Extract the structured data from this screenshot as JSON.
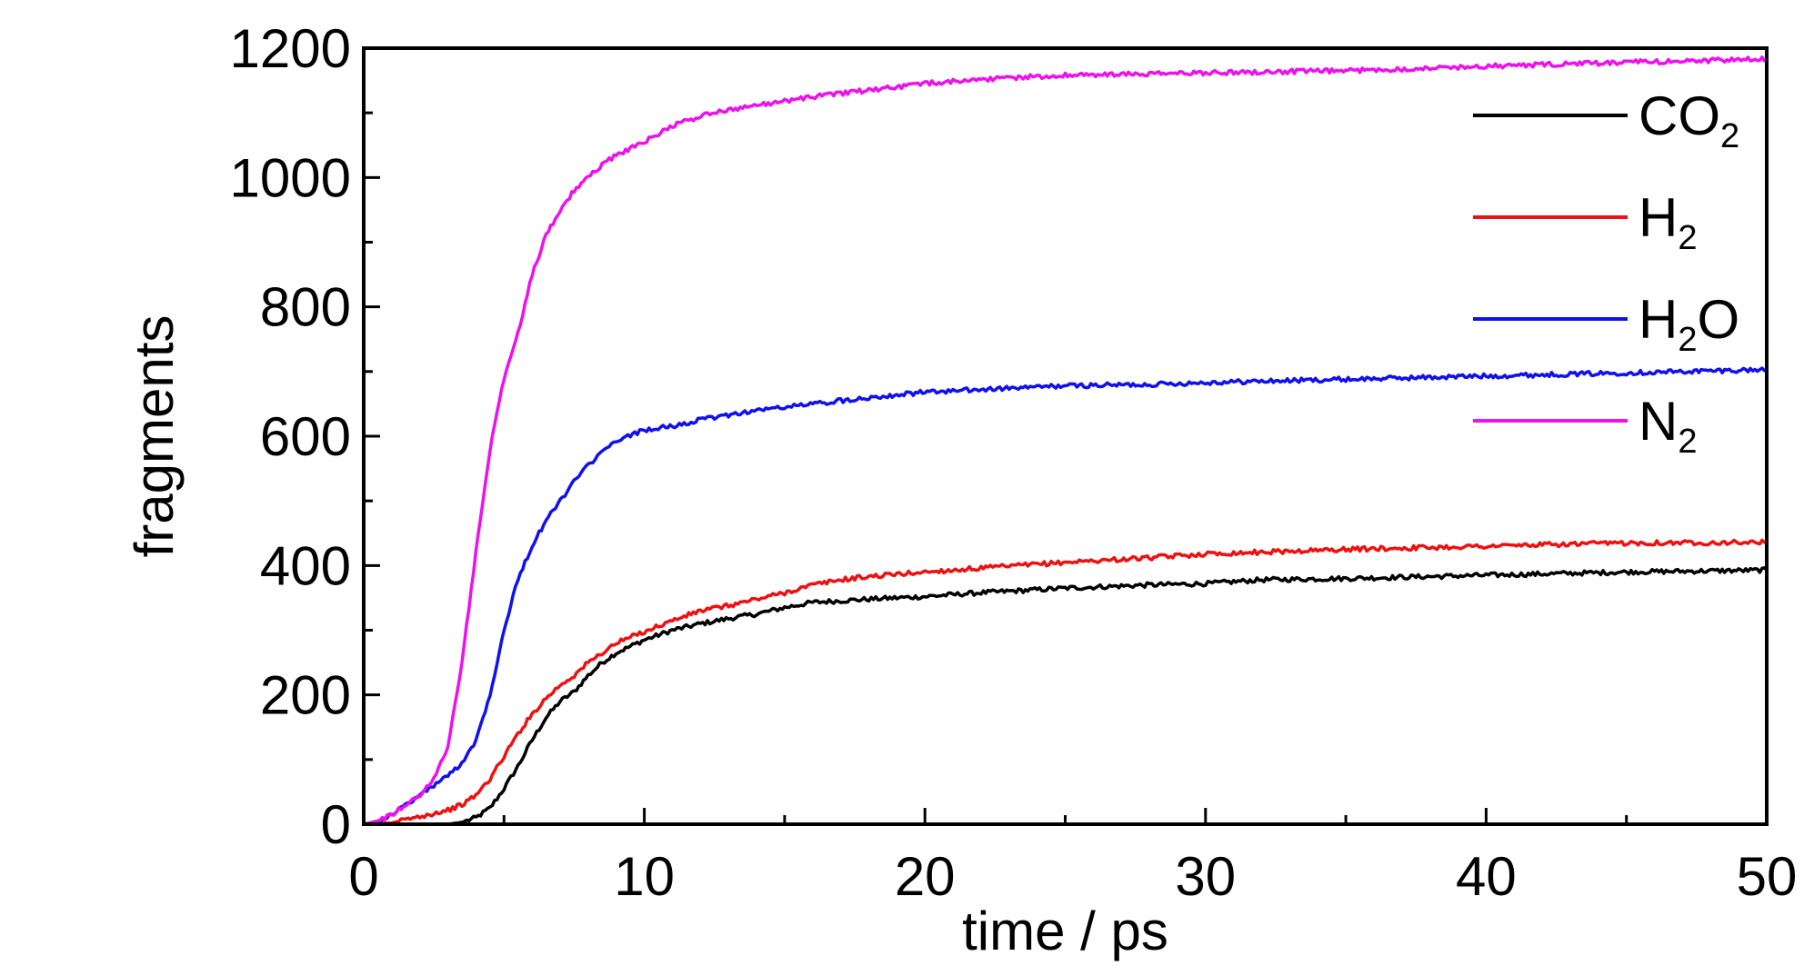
{
  "chart_data": {
    "type": "line",
    "xlabel": "time / ps",
    "ylabel": "fragments",
    "xlim": [
      0,
      50
    ],
    "ylim": [
      0,
      1200
    ],
    "x_ticks": [
      0,
      10,
      20,
      30,
      40,
      50
    ],
    "y_ticks": [
      0,
      200,
      400,
      600,
      800,
      1000,
      1200
    ],
    "x_ticks_labels": [
      "0",
      "10",
      "20",
      "30",
      "40",
      "50"
    ],
    "y_ticks_labels": [
      "0",
      "200",
      "400",
      "600",
      "800",
      "1000",
      "1200"
    ],
    "grid": false,
    "legend_position": "top-right",
    "series": [
      {
        "name": "CO2",
        "name_base": "CO",
        "name_sub": "2",
        "name_tail": "",
        "color": "#000000",
        "points": [
          [
            0,
            0
          ],
          [
            3,
            0
          ],
          [
            3.5,
            3
          ],
          [
            4,
            10
          ],
          [
            4.5,
            25
          ],
          [
            5,
            55
          ],
          [
            5.5,
            90
          ],
          [
            6,
            130
          ],
          [
            6.5,
            165
          ],
          [
            7,
            190
          ],
          [
            7.5,
            205
          ],
          [
            8,
            230
          ],
          [
            8.5,
            250
          ],
          [
            9,
            265
          ],
          [
            10,
            285
          ],
          [
            11,
            300
          ],
          [
            12,
            310
          ],
          [
            13,
            318
          ],
          [
            14,
            325
          ],
          [
            15,
            335
          ],
          [
            16,
            343
          ],
          [
            18,
            348
          ],
          [
            20,
            352
          ],
          [
            22,
            358
          ],
          [
            25,
            365
          ],
          [
            28,
            370
          ],
          [
            30,
            372
          ],
          [
            32,
            378
          ],
          [
            35,
            380
          ],
          [
            40,
            385
          ],
          [
            45,
            390
          ],
          [
            50,
            393
          ]
        ]
      },
      {
        "name": "H2",
        "name_base": "H",
        "name_sub": "2",
        "name_tail": "",
        "color": "#ee1111",
        "points": [
          [
            0,
            0
          ],
          [
            1,
            2
          ],
          [
            2,
            12
          ],
          [
            3,
            22
          ],
          [
            3.5,
            30
          ],
          [
            4,
            45
          ],
          [
            4.5,
            70
          ],
          [
            5,
            105
          ],
          [
            5.5,
            140
          ],
          [
            6,
            170
          ],
          [
            6.5,
            195
          ],
          [
            7,
            215
          ],
          [
            7.5,
            230
          ],
          [
            8,
            250
          ],
          [
            8.5,
            265
          ],
          [
            9,
            280
          ],
          [
            10,
            298
          ],
          [
            11,
            315
          ],
          [
            12,
            330
          ],
          [
            13,
            338
          ],
          [
            14,
            348
          ],
          [
            15,
            358
          ],
          [
            16,
            370
          ],
          [
            17,
            378
          ],
          [
            18,
            383
          ],
          [
            20,
            390
          ],
          [
            22,
            396
          ],
          [
            25,
            405
          ],
          [
            28,
            412
          ],
          [
            30,
            418
          ],
          [
            35,
            425
          ],
          [
            40,
            430
          ],
          [
            45,
            435
          ],
          [
            50,
            436
          ]
        ]
      },
      {
        "name": "H2O",
        "name_base": "H",
        "name_sub": "2",
        "name_tail": "O",
        "color": "#1111ee",
        "points": [
          [
            0,
            0
          ],
          [
            0.5,
            5
          ],
          [
            1,
            15
          ],
          [
            1.5,
            30
          ],
          [
            2,
            45
          ],
          [
            2.5,
            60
          ],
          [
            3,
            75
          ],
          [
            3.5,
            95
          ],
          [
            4,
            130
          ],
          [
            4.5,
            200
          ],
          [
            5,
            300
          ],
          [
            5.5,
            380
          ],
          [
            6,
            430
          ],
          [
            6.5,
            470
          ],
          [
            7,
            500
          ],
          [
            7.5,
            530
          ],
          [
            8,
            555
          ],
          [
            8.5,
            575
          ],
          [
            9,
            592
          ],
          [
            10,
            610
          ],
          [
            11,
            615
          ],
          [
            12,
            625
          ],
          [
            13,
            633
          ],
          [
            14,
            640
          ],
          [
            15,
            645
          ],
          [
            16,
            650
          ],
          [
            18,
            660
          ],
          [
            20,
            668
          ],
          [
            22,
            672
          ],
          [
            25,
            678
          ],
          [
            28,
            680
          ],
          [
            30,
            683
          ],
          [
            35,
            688
          ],
          [
            40,
            693
          ],
          [
            45,
            698
          ],
          [
            50,
            703
          ]
        ]
      },
      {
        "name": "N2",
        "name_base": "N",
        "name_sub": "2",
        "name_tail": "",
        "color": "#ee11ee",
        "points": [
          [
            0,
            0
          ],
          [
            0.5,
            5
          ],
          [
            1,
            15
          ],
          [
            1.5,
            30
          ],
          [
            2,
            45
          ],
          [
            2.5,
            70
          ],
          [
            3,
            120
          ],
          [
            3.5,
            250
          ],
          [
            4,
            420
          ],
          [
            4.5,
            580
          ],
          [
            5,
            690
          ],
          [
            5.5,
            760
          ],
          [
            6,
            850
          ],
          [
            6.5,
            910
          ],
          [
            7,
            950
          ],
          [
            7.5,
            980
          ],
          [
            8,
            1000
          ],
          [
            8.5,
            1020
          ],
          [
            9,
            1035
          ],
          [
            10,
            1055
          ],
          [
            11,
            1080
          ],
          [
            12,
            1095
          ],
          [
            13,
            1105
          ],
          [
            14,
            1112
          ],
          [
            15,
            1118
          ],
          [
            16,
            1125
          ],
          [
            18,
            1135
          ],
          [
            20,
            1145
          ],
          [
            22,
            1152
          ],
          [
            25,
            1158
          ],
          [
            28,
            1160
          ],
          [
            30,
            1162
          ],
          [
            35,
            1165
          ],
          [
            40,
            1172
          ],
          [
            45,
            1178
          ],
          [
            50,
            1183
          ]
        ]
      }
    ]
  }
}
